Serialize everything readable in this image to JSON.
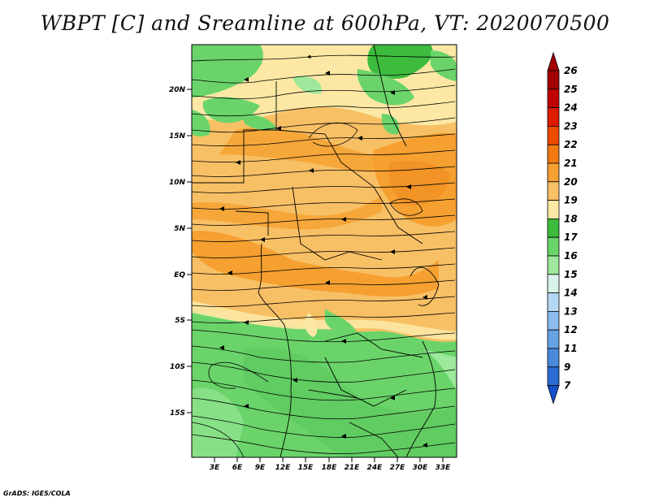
{
  "title": "WBPT [C] and Sreamline at 600hPa, VT: 2020070500",
  "credit": "GrADS: IGES/COLA",
  "lat_ticks": [
    "20N",
    "15N",
    "10N",
    "5N",
    "EQ",
    "5S",
    "10S",
    "15S"
  ],
  "lon_ticks": [
    "3E",
    "6E",
    "9E",
    "12E",
    "15E",
    "18E",
    "21E",
    "24E",
    "27E",
    "30E",
    "33E"
  ],
  "colorbar": {
    "levels": [
      "26",
      "25",
      "24",
      "23",
      "22",
      "21",
      "20",
      "19",
      "18",
      "17",
      "16",
      "15",
      "14",
      "13",
      "12",
      "11",
      "9",
      "7"
    ],
    "colors": [
      "#a50000",
      "#c00000",
      "#dd1c00",
      "#ee4a00",
      "#f07a10",
      "#f5a030",
      "#f8c065",
      "#fce8a4",
      "#3dbb3d",
      "#6ad46a",
      "#9de89a",
      "#d8f4e8",
      "#b4d8f4",
      "#8cbcec",
      "#64a2e4",
      "#4a88dc",
      "#2a6cd4",
      "#1450cc"
    ]
  },
  "field_colors": {
    "c17": "#6ad46a",
    "c18": "#3dbb3d",
    "c16": "#9de89a",
    "c19": "#fce8a4",
    "c20": "#f8c065",
    "c21": "#f5a030"
  }
}
